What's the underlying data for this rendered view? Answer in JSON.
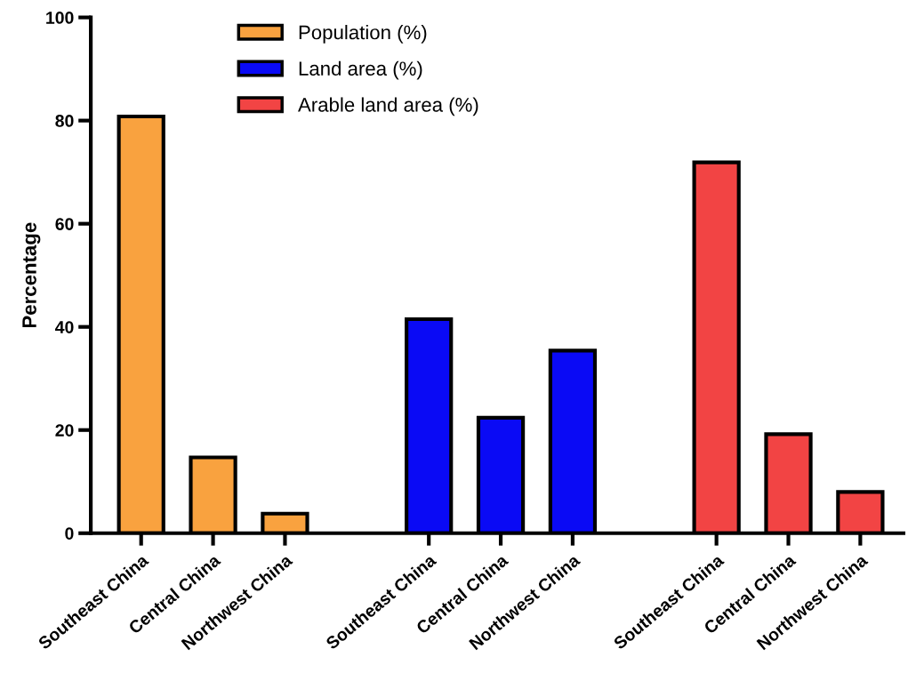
{
  "chart_data": {
    "type": "bar",
    "ylabel": "Percentage",
    "categories": [
      "Southeast China",
      "Central China",
      "Northwest China",
      null,
      "Southeast China",
      "Central China",
      "Northwest China",
      null,
      "Southeast China",
      "Central China",
      "Northwest China"
    ],
    "series": [
      {
        "name": "Population (%)",
        "color": "#f9a23f",
        "values": [
          80.8,
          14.7,
          3.8,
          null,
          null,
          null,
          null,
          null,
          null,
          null,
          null
        ]
      },
      {
        "name": "Land area (%)",
        "color": "#0a0af5",
        "values": [
          null,
          null,
          null,
          null,
          41.5,
          22.4,
          35.4,
          null,
          null,
          null,
          null
        ]
      },
      {
        "name": "Arable land area (%)",
        "color": "#f24444",
        "values": [
          null,
          null,
          null,
          null,
          null,
          null,
          null,
          null,
          71.9,
          19.2,
          8.0
        ]
      }
    ],
    "ylim": [
      0,
      100
    ],
    "yticks": [
      0,
      20,
      40,
      60,
      80,
      100
    ],
    "grid": false,
    "legend": "top"
  }
}
